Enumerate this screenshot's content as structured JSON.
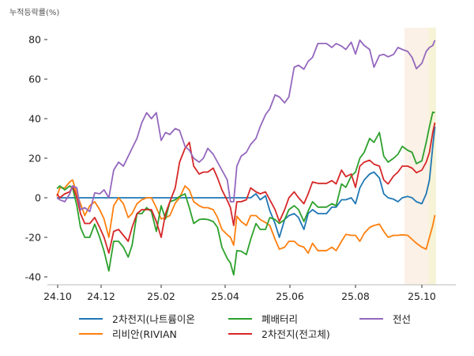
{
  "chart_data": {
    "type": "line",
    "ylabel": "누적등락률(%)",
    "ylim": [
      -44,
      86
    ],
    "yticks": [
      -40,
      -20,
      0,
      20,
      40,
      60,
      80
    ],
    "xticks": [
      {
        "label": "24.10",
        "date": "2024-10-01"
      },
      {
        "label": "24.12",
        "date": "2024-12-01"
      },
      {
        "label": "25.02",
        "date": "2025-02-01"
      },
      {
        "label": "25.04",
        "date": "2025-04-01"
      },
      {
        "label": "25.06",
        "date": "2025-06-01"
      },
      {
        "label": "25.08",
        "date": "2025-08-01"
      },
      {
        "label": "25.10",
        "date": "2025-10-01"
      }
    ],
    "grid": false,
    "legend_placement": "bottom",
    "highlights": [
      {
        "start": "2025-09-15",
        "end": "2025-10-07",
        "color": "#fbf1e6"
      },
      {
        "start": "2025-10-07",
        "end": "2025-10-14",
        "color": "#f6f3d6"
      }
    ],
    "x": [
      "2024-09-30",
      "2024-10-04",
      "2024-10-11",
      "2024-10-18",
      "2024-10-22",
      "2024-10-28",
      "2024-11-02",
      "2024-11-08",
      "2024-11-15",
      "2024-11-22",
      "2024-11-29",
      "2024-12-04",
      "2024-12-09",
      "2024-12-14",
      "2024-12-19",
      "2024-12-24",
      "2024-12-29",
      "2025-01-02",
      "2025-01-07",
      "2025-01-12",
      "2025-01-17",
      "2025-01-22",
      "2025-01-27",
      "2025-02-01",
      "2025-02-05",
      "2025-02-09",
      "2025-02-14",
      "2025-02-18",
      "2025-02-23",
      "2025-02-27",
      "2025-03-03",
      "2025-03-08",
      "2025-03-12",
      "2025-03-16",
      "2025-03-21",
      "2025-03-25",
      "2025-03-29",
      "2025-04-03",
      "2025-04-06",
      "2025-04-09",
      "2025-04-12",
      "2025-04-16",
      "2025-04-21",
      "2025-04-25",
      "2025-04-30",
      "2025-05-04",
      "2025-05-09",
      "2025-05-13",
      "2025-05-18",
      "2025-05-22",
      "2025-05-27",
      "2025-05-31",
      "2025-06-05",
      "2025-06-09",
      "2025-06-14",
      "2025-06-18",
      "2025-06-22",
      "2025-06-27",
      "2025-07-01",
      "2025-07-05",
      "2025-07-10",
      "2025-07-14",
      "2025-07-19",
      "2025-07-23",
      "2025-07-28",
      "2025-08-01",
      "2025-08-05",
      "2025-08-09",
      "2025-08-14",
      "2025-08-18",
      "2025-08-23",
      "2025-08-27",
      "2025-08-31",
      "2025-09-05",
      "2025-09-09",
      "2025-09-13",
      "2025-09-18",
      "2025-09-22",
      "2025-09-26",
      "2025-10-01",
      "2025-10-05",
      "2025-10-08",
      "2025-10-11",
      "2025-10-13"
    ],
    "series": [
      {
        "name": "2차전지(나트륨이온",
        "color": "#1f77b4",
        "values": [
          0,
          0,
          0,
          0,
          0,
          0,
          0,
          0,
          0,
          0,
          0,
          0,
          0,
          0,
          0,
          0,
          0,
          0,
          0,
          0,
          0,
          0,
          0,
          0,
          0,
          0,
          0,
          0,
          0,
          0,
          0,
          0,
          0,
          0,
          0,
          0,
          0,
          0,
          0,
          0,
          0,
          0,
          0,
          0,
          2,
          -1,
          1,
          -6.5,
          -13,
          -20,
          -11,
          -9,
          -8,
          -10,
          -16,
          -8,
          -6,
          -8,
          -8,
          -8,
          -4.7,
          -4.7,
          -1,
          -1,
          0,
          -3,
          5,
          9,
          12,
          13,
          10,
          2,
          0,
          -0.7,
          -2,
          0,
          0.7,
          0,
          -2,
          -3,
          2,
          9,
          26,
          36
        ]
      },
      {
        "name": "리비안(RIVIAN",
        "color": "#ff7f0e",
        "values": [
          0.7,
          5,
          5,
          8,
          9,
          2,
          -3,
          -9,
          -4,
          -2,
          -6,
          -10.7,
          -20,
          -4,
          0,
          -3,
          -10,
          -8,
          -3,
          -1,
          0,
          0,
          -5,
          -10.7,
          -10,
          -9,
          -2.7,
          0,
          6,
          4,
          -2,
          -4,
          -5,
          -5,
          -6,
          -10,
          -16,
          -18.7,
          -20,
          -24,
          -9.3,
          -12,
          -14,
          -9,
          -9,
          -11,
          -12.5,
          -14,
          -21,
          -26,
          -25,
          -22,
          -22,
          -24,
          -25,
          -28,
          -23,
          -26.7,
          -26.7,
          -26.7,
          -25,
          -26.7,
          -22,
          -18.5,
          -19,
          -19,
          -22,
          -18,
          -15,
          -14,
          -13.3,
          -17,
          -20,
          -19,
          -19,
          -18.7,
          -19,
          -21,
          -23,
          -25,
          -26,
          -20,
          -14,
          -8.7
        ]
      },
      {
        "name": "폐배터리",
        "color": "#2ca02c",
        "values": [
          4.7,
          6,
          4,
          6,
          5,
          -4,
          -15,
          -20,
          -20,
          -13.3,
          -20,
          -27,
          -37,
          -22,
          -22,
          -25,
          -30,
          -24,
          -8,
          -8,
          -5,
          -7,
          -17,
          -4,
          -10.7,
          -2,
          -1,
          0.7,
          2,
          -5,
          -13,
          -11,
          -10.7,
          -11,
          -12,
          -15,
          -25,
          -30.7,
          -33,
          -39,
          -26.7,
          -27,
          -28.7,
          -21,
          -13,
          -16,
          -16,
          -10,
          -11,
          -13,
          -11,
          -6,
          -4,
          -6,
          -12,
          -6.7,
          -2,
          -4.7,
          -4.7,
          -4.7,
          -3,
          -4,
          7,
          5.3,
          11,
          13,
          20,
          23,
          30,
          28,
          33,
          21,
          18,
          20,
          22,
          26,
          24,
          23,
          17.3,
          18.7,
          28,
          36,
          43.3,
          43
        ]
      },
      {
        "name": "2차전지(전고체)",
        "color": "#d62728",
        "values": [
          2,
          0,
          2,
          3,
          6,
          0,
          -8,
          -13,
          -13,
          -10,
          -15,
          -20,
          -28,
          -17,
          -16,
          -19,
          -22,
          -15,
          -8,
          -6,
          -6,
          -6,
          -12,
          -20,
          -8,
          -2,
          5,
          18,
          25,
          28,
          16,
          12,
          13,
          13,
          15,
          10,
          4,
          -1.3,
          -5,
          -14,
          -2,
          -2,
          -1,
          5,
          3,
          2,
          3,
          -1,
          -6,
          -12,
          -6,
          0,
          3,
          0,
          -3,
          2,
          8,
          7.3,
          7.3,
          7.3,
          8.7,
          7,
          14,
          10.7,
          12,
          5.3,
          16,
          18,
          19,
          17,
          16,
          9,
          7,
          11,
          13,
          16,
          16,
          15,
          12.7,
          14,
          18,
          23,
          33,
          38
        ]
      },
      {
        "name": "전선",
        "color": "#9467bd",
        "values": [
          0,
          -1,
          -2,
          2,
          6,
          5,
          -6,
          -5,
          -7,
          2.5,
          2,
          4,
          0,
          14,
          18,
          16,
          21,
          25,
          30,
          38,
          43,
          40,
          43,
          29,
          33,
          32,
          35,
          34,
          26,
          24,
          20,
          18,
          20,
          25,
          22,
          18,
          14,
          9,
          -2,
          -2,
          16,
          21,
          23,
          27,
          30,
          36,
          42,
          45,
          52,
          51,
          48,
          51,
          66,
          67,
          65,
          69,
          71,
          78,
          78,
          78,
          76,
          78,
          76.7,
          75,
          78.7,
          72.7,
          79.7,
          77,
          75,
          66,
          72,
          72.5,
          71.3,
          72.5,
          76,
          75,
          74,
          71,
          65.3,
          68,
          74,
          76,
          77,
          79.7
        ]
      }
    ]
  }
}
